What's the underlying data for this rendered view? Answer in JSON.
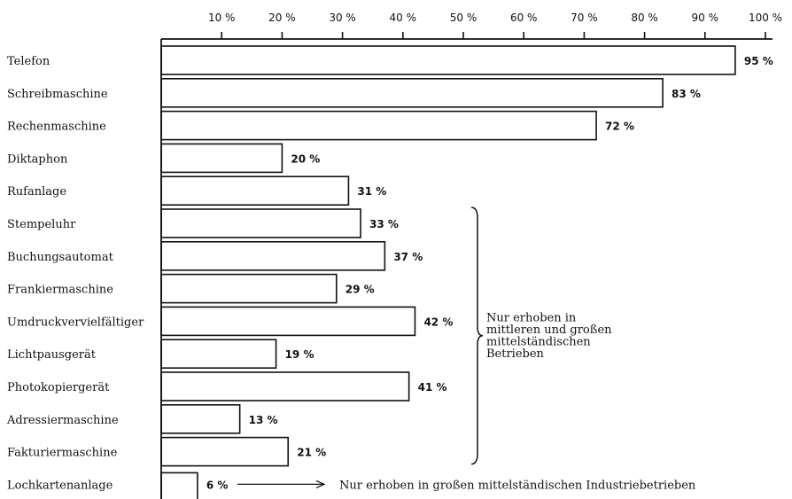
{
  "chart_data": {
    "type": "bar",
    "orientation": "horizontal",
    "title": "",
    "xlabel": "",
    "ylabel": "",
    "xlim": [
      0,
      100
    ],
    "tick_labels": [
      "10 %",
      "20 %",
      "30 %",
      "40 %",
      "50 %",
      "60 %",
      "70 %",
      "80 %",
      "90 %",
      "100 %"
    ],
    "tick_values": [
      10,
      20,
      30,
      40,
      50,
      60,
      70,
      80,
      90,
      100
    ],
    "axis_position": "top",
    "grid": false,
    "categories": [
      "Telefon",
      "Schreibmaschine",
      "Rechenmaschine",
      "Diktaphon",
      "Rufanlage",
      "Stempeluhr",
      "Buchungsautomat",
      "Frankiermaschine",
      "Umdruckvervielfältiger",
      "Lichtpausgerät",
      "Photokopiergerät",
      "Adressiermaschine",
      "Fakturiermaschine",
      "Lochkartenanlage"
    ],
    "values": [
      95,
      83,
      72,
      20,
      31,
      33,
      37,
      29,
      42,
      19,
      41,
      13,
      21,
      6
    ],
    "value_labels": [
      "95 %",
      "83 %",
      "72 %",
      "20 %",
      "31 %",
      "33 %",
      "37 %",
      "29 %",
      "42 %",
      "19 %",
      "41 %",
      "13 %",
      "21 %",
      "6 %"
    ],
    "annotations": [
      {
        "text_lines": [
          "Nur erhoben in",
          "mittleren und großen",
          "mittelständischen",
          "Betrieben"
        ],
        "applies_to": [
          "Stempeluhr",
          "Buchungsautomat",
          "Frankiermaschine",
          "Umdruckvervielfältiger",
          "Lichtpausgerät",
          "Photokopiergerät",
          "Adressiermaschine",
          "Fakturiermaschine"
        ],
        "marker": "brace"
      },
      {
        "text": "Nur erhoben in großen mittelständischen Industriebetrieben",
        "applies_to": [
          "Lochkartenanlage"
        ],
        "marker": "arrow"
      }
    ]
  }
}
